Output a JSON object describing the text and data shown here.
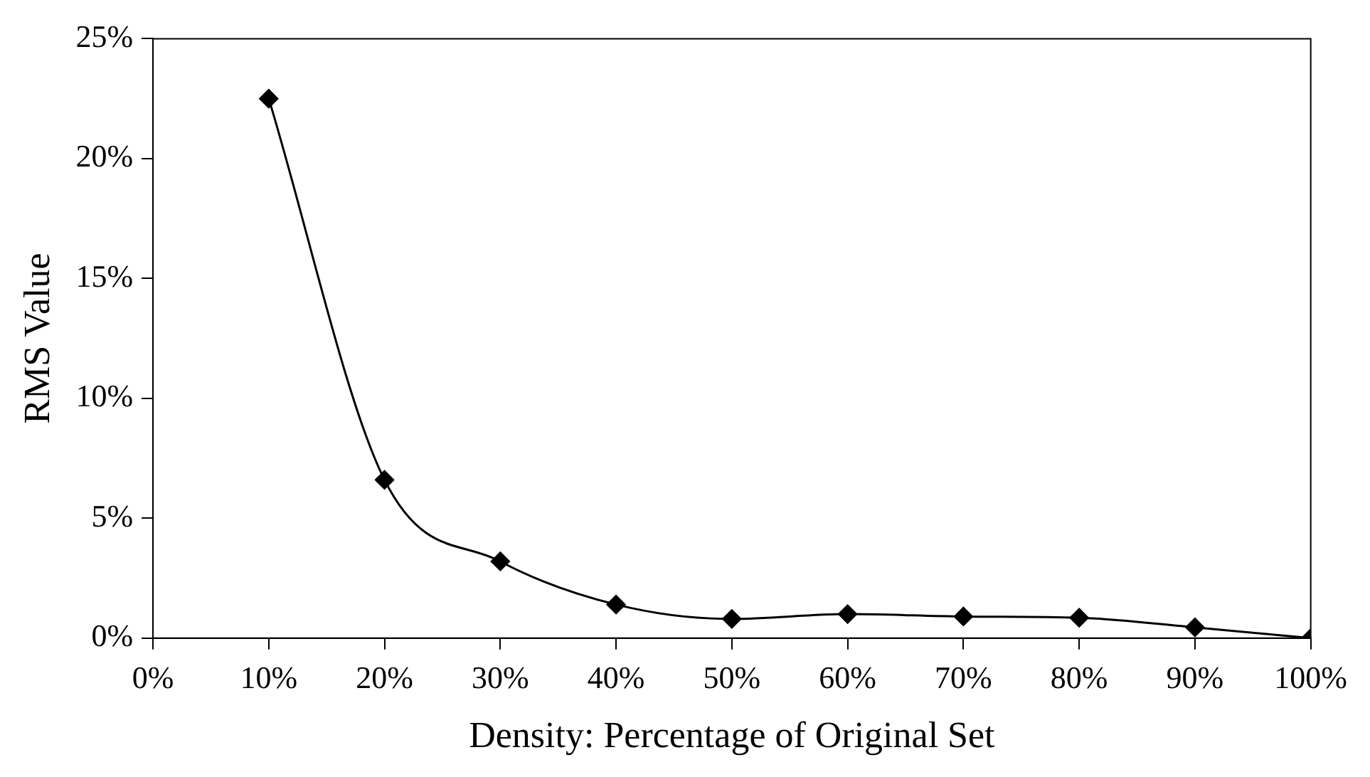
{
  "chart_data": {
    "type": "line",
    "xlabel": "Density: Percentage of Original Set",
    "ylabel": "RMS Value",
    "x": [
      10,
      20,
      30,
      40,
      50,
      60,
      70,
      80,
      90,
      100
    ],
    "series": [
      {
        "color": "#000000",
        "values": [
          22.5,
          6.6,
          3.2,
          1.4,
          0.8,
          1.0,
          0.9,
          0.85,
          0.45,
          0
        ]
      }
    ],
    "xlim": [
      0,
      100
    ],
    "xticks": [
      {
        "value": 0,
        "label": "0%"
      },
      {
        "value": 10,
        "label": "10%"
      },
      {
        "value": 20,
        "label": "20%"
      },
      {
        "value": 30,
        "label": "30%"
      },
      {
        "value": 40,
        "label": "40%"
      },
      {
        "value": 50,
        "label": "50%"
      },
      {
        "value": 60,
        "label": "60%"
      },
      {
        "value": 70,
        "label": "70%"
      },
      {
        "value": 80,
        "label": "80%"
      },
      {
        "value": 90,
        "label": "90%"
      },
      {
        "value": 100,
        "label": "100%"
      }
    ],
    "ylim": [
      0,
      25
    ],
    "yticks": [
      {
        "value": 0,
        "label": "0%"
      },
      {
        "value": 5,
        "label": "5%"
      },
      {
        "value": 10,
        "label": "10%"
      },
      {
        "value": 15,
        "label": "15%"
      },
      {
        "value": 20,
        "label": "20%"
      },
      {
        "value": 25,
        "label": "25%"
      }
    ],
    "grid": false,
    "legend": false,
    "marker": "diamond",
    "line_style": "solid"
  }
}
